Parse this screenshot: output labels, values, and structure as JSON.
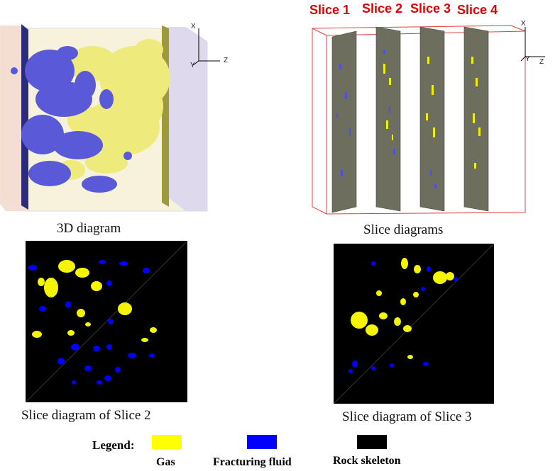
{
  "panels": {
    "diagram_3d": {
      "caption": "3D diagram",
      "axes": {
        "x": "X",
        "y": "Y",
        "z": "Z"
      }
    },
    "slices": {
      "caption": "Slice diagrams",
      "tags": [
        "Slice 1",
        "Slice 2",
        "Slice 3",
        "Slice 4"
      ],
      "axes": {
        "x": "X",
        "y": "Y",
        "z": "Z"
      }
    },
    "slice2": {
      "caption": "Slice diagram of Slice 2"
    },
    "slice3": {
      "caption": "Slice diagram of Slice 3"
    }
  },
  "legend": {
    "title": "Legend:",
    "items": [
      {
        "label": "Gas",
        "color": "#ffff00"
      },
      {
        "label": "Fracturing fluid",
        "color": "#0000ff"
      },
      {
        "label": "Rock skeleton",
        "color": "#000000"
      }
    ]
  },
  "colors": {
    "gas": "#f0ef7a",
    "fluid": "#5a5ad6",
    "slice_plane": "#6e6e5e",
    "bounding_box": "#e04040",
    "slice_tag": "#e00000"
  }
}
